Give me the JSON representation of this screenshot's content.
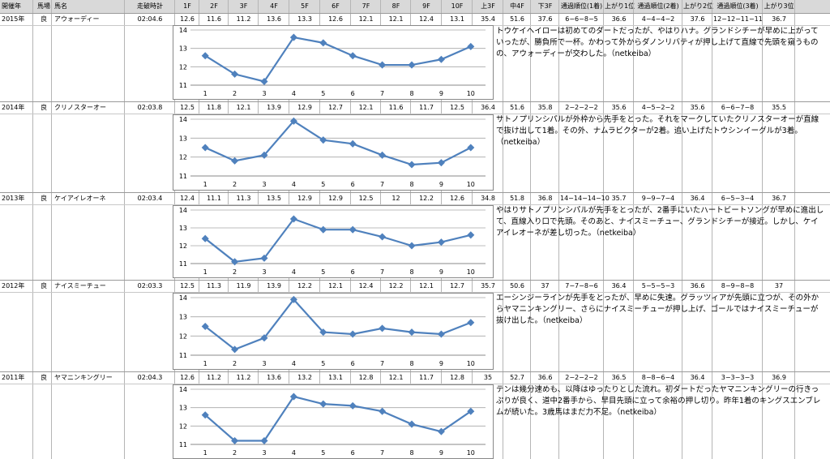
{
  "header": [
    "開催年",
    "馬場",
    "馬名",
    "走破時計",
    "1F",
    "2F",
    "3F",
    "4F",
    "5F",
    "6F",
    "7F",
    "8F",
    "9F",
    "10F",
    "上3F",
    "中4F",
    "下3F",
    "通過順位(1着)",
    "上がり1位",
    "通過順位(2着)",
    "上がり2位",
    "通過順位(3着)",
    "上がり3位"
  ],
  "races": [
    {
      "cells": [
        "2015年",
        "良",
        "アウォーディー",
        "02:04.6",
        "12.6",
        "11.6",
        "11.2",
        "13.6",
        "13.3",
        "12.6",
        "12.1",
        "12.1",
        "12.4",
        "13.1",
        "35.4",
        "51.6",
        "37.6",
        "6−6−8−5",
        "36.6",
        "4−4−4−2",
        "37.6",
        "12−12−11−11",
        "36.7"
      ],
      "note": "トウケイヘイローは初めてのダートだったが、やはりハナ。グランドシチーが早めに上がっていったが、勝負所で一杯。かわって外からダノンリバティが押し上げて直線で先頭を窺うものの、アウォーディーが交わした。（netkeiba）",
      "chart_data": {
        "type": "line",
        "x": [
          1,
          2,
          3,
          4,
          5,
          6,
          7,
          8,
          9,
          10
        ],
        "values": [
          12.6,
          11.6,
          11.2,
          13.6,
          13.3,
          12.6,
          12.1,
          12.1,
          12.4,
          13.1
        ],
        "ylim": [
          11,
          14
        ],
        "yticks": [
          11,
          12,
          13,
          14
        ]
      }
    },
    {
      "cells": [
        "2014年",
        "良",
        "クリノスターオー",
        "02:03.8",
        "12.5",
        "11.8",
        "12.1",
        "13.9",
        "12.9",
        "12.7",
        "12.1",
        "11.6",
        "11.7",
        "12.5",
        "36.4",
        "51.6",
        "35.8",
        "2−2−2−2",
        "35.6",
        "4−5−2−2",
        "35.6",
        "6−6−7−8",
        "35.5"
      ],
      "note": "サトノプリンシパルが外枠から先手をとった。それをマークしていたクリノスターオーが直線で抜け出して1着。その外、ナムラビクターが2着。追い上げたトウシンイーグルが3着。（netkeiba）",
      "chart_data": {
        "type": "line",
        "x": [
          1,
          2,
          3,
          4,
          5,
          6,
          7,
          8,
          9,
          10
        ],
        "values": [
          12.5,
          11.8,
          12.1,
          13.9,
          12.9,
          12.7,
          12.1,
          11.6,
          11.7,
          12.5
        ],
        "ylim": [
          11,
          14
        ],
        "yticks": [
          11,
          12,
          13,
          14
        ]
      }
    },
    {
      "cells": [
        "2013年",
        "良",
        "ケイアイレオーネ",
        "02:03.4",
        "12.4",
        "11.1",
        "11.3",
        "13.5",
        "12.9",
        "12.9",
        "12.5",
        "12",
        "12.2",
        "12.6",
        "34.8",
        "51.8",
        "36.8",
        "14−14−14−10",
        "35.7",
        "9−9−7−4",
        "36.4",
        "6−5−3−4",
        "36.7"
      ],
      "note": "やはりサトノプリンシパルが先手をとったが、2番手にいたハートビートソングが早めに進出して、直線入り口で先頭。そのあと、ナイスミーチュー、グランドシチーが接近。しかし、ケイアイレオーネが差し切った。（netkeiba）",
      "chart_data": {
        "type": "line",
        "x": [
          1,
          2,
          3,
          4,
          5,
          6,
          7,
          8,
          9,
          10
        ],
        "values": [
          12.4,
          11.1,
          11.3,
          13.5,
          12.9,
          12.9,
          12.5,
          12,
          12.2,
          12.6
        ],
        "ylim": [
          11,
          14
        ],
        "yticks": [
          11,
          12,
          13,
          14
        ]
      }
    },
    {
      "cells": [
        "2012年",
        "良",
        "ナイスミーチュー",
        "02:03.3",
        "12.5",
        "11.3",
        "11.9",
        "13.9",
        "12.2",
        "12.1",
        "12.4",
        "12.2",
        "12.1",
        "12.7",
        "35.7",
        "50.6",
        "37",
        "7−7−8−6",
        "36.4",
        "5−5−5−3",
        "36.6",
        "8−9−8−8",
        "37"
      ],
      "note": "エーシンジーラインが先手をとったが、早めに失速。グラッツィアが先頭に立つが、その外からヤマニンキングリー、さらにナイスミーチューが押し上げ、ゴールではナイスミーチューが抜け出した。（netkeiba）",
      "chart_data": {
        "type": "line",
        "x": [
          1,
          2,
          3,
          4,
          5,
          6,
          7,
          8,
          9,
          10
        ],
        "values": [
          12.5,
          11.3,
          11.9,
          13.9,
          12.2,
          12.1,
          12.4,
          12.2,
          12.1,
          12.7
        ],
        "ylim": [
          11,
          14
        ],
        "yticks": [
          11,
          12,
          13,
          14
        ]
      }
    },
    {
      "cells": [
        "2011年",
        "良",
        "ヤマニンキングリー",
        "02:04.3",
        "12.6",
        "11.2",
        "11.2",
        "13.6",
        "13.2",
        "13.1",
        "12.8",
        "12.1",
        "11.7",
        "12.8",
        "35",
        "52.7",
        "36.6",
        "2−2−2−2",
        "36.5",
        "8−8−6−4",
        "36.4",
        "3−3−3−3",
        "36.9"
      ],
      "note": "テンは幾分速めも、以降はゆったりとした流れ。初ダートだったヤマニンキングリーの行きっぷりが良く、道中2番手から、早目先頭に立って余裕の押し切り。昨年1着のキングスエンブレムが続いた。3歳馬はまだ力不足。（netkeiba）",
      "chart_data": {
        "type": "line",
        "x": [
          1,
          2,
          3,
          4,
          5,
          6,
          7,
          8,
          9,
          10
        ],
        "values": [
          12.6,
          11.2,
          11.2,
          13.6,
          13.2,
          13.1,
          12.8,
          12.1,
          11.7,
          12.8
        ],
        "ylim": [
          11,
          14
        ],
        "yticks": [
          11,
          12,
          13,
          14
        ]
      }
    }
  ],
  "colors": {
    "line": "#4f81bd",
    "marker": "#4f81bd",
    "grid": "#a6a6a6",
    "header_bg": "#d9d9d9"
  }
}
